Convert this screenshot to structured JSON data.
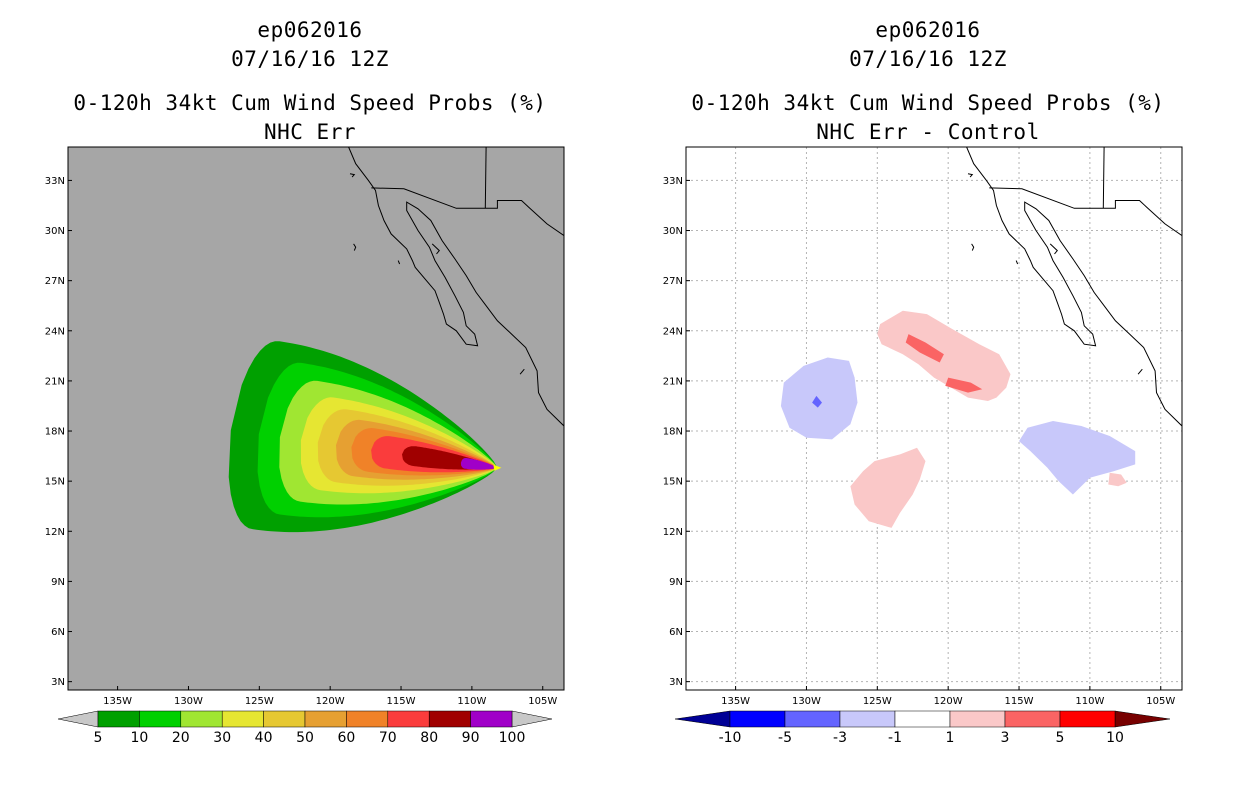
{
  "panels": [
    {
      "id": "left",
      "title_line1": "ep062016",
      "title_line2": "07/16/16 12Z",
      "title_line3": "0-120h 34kt Cum Wind Speed Probs (%)",
      "title_line4": "NHC Err"
    },
    {
      "id": "right",
      "title_line1": "ep062016",
      "title_line2": "07/16/16 12Z",
      "title_line3": "0-120h 34kt Cum Wind Speed Probs (%)",
      "title_line4": "NHC Err - Control"
    }
  ],
  "chart_data": [
    {
      "type": "heatmap",
      "title": "0-120h 34kt Cum Wind Speed Probs (%)",
      "subtitle": "NHC Err",
      "xlim_deg_west": [
        138.5,
        103.5
      ],
      "ylim_deg_north": [
        2.5,
        35
      ],
      "x_ticks": [
        "135W",
        "130W",
        "125W",
        "120W",
        "115W",
        "110W",
        "105W"
      ],
      "y_ticks": [
        "3N",
        "6N",
        "9N",
        "12N",
        "15N",
        "18N",
        "21N",
        "24N",
        "27N",
        "30N",
        "33N"
      ],
      "background_color": "#a6a6a6",
      "grid": false,
      "storm_center": [
        108.2,
        15.8
      ],
      "swath_heading_from_storm_deg": 188,
      "levels": [
        {
          "min": 5,
          "color": "#00a000",
          "extent_back": 19.0,
          "half_width": 6.7
        },
        {
          "min": 10,
          "color": "#00d000",
          "extent_back": 17.0,
          "half_width": 5.4
        },
        {
          "min": 20,
          "color": "#a0e632",
          "extent_back": 15.5,
          "half_width": 4.3
        },
        {
          "min": 30,
          "color": "#e6e632",
          "extent_back": 14.0,
          "half_width": 3.3
        },
        {
          "min": 40,
          "color": "#e6c832",
          "extent_back": 12.8,
          "half_width": 2.6
        },
        {
          "min": 50,
          "color": "#e6a032",
          "extent_back": 11.5,
          "half_width": 2.0
        },
        {
          "min": 60,
          "color": "#f08228",
          "extent_back": 10.4,
          "half_width": 1.55
        },
        {
          "min": 70,
          "color": "#fa3c3c",
          "extent_back": 9.0,
          "half_width": 1.15
        },
        {
          "min": 80,
          "color": "#a00000",
          "extent_back": 6.8,
          "half_width": 0.7
        },
        {
          "min": 90,
          "color": "#a000c8",
          "extent_back": 2.6,
          "half_width": 0.38
        }
      ],
      "colorbar_labels": [
        "5",
        "10",
        "20",
        "30",
        "40",
        "50",
        "60",
        "70",
        "80",
        "90",
        "100"
      ],
      "colorbar_colors": [
        "#00a000",
        "#00d000",
        "#a0e632",
        "#e6e632",
        "#e6c832",
        "#e6a032",
        "#f08228",
        "#fa3c3c",
        "#a00000",
        "#a000c8"
      ]
    },
    {
      "type": "heatmap",
      "title": "0-120h 34kt Cum Wind Speed Probs (%)",
      "subtitle": "NHC Err - Control",
      "xlim_deg_west": [
        138.5,
        103.5
      ],
      "ylim_deg_north": [
        2.5,
        35
      ],
      "x_ticks": [
        "135W",
        "130W",
        "125W",
        "120W",
        "115W",
        "110W",
        "105W"
      ],
      "y_ticks": [
        "3N",
        "6N",
        "9N",
        "12N",
        "15N",
        "18N",
        "21N",
        "24N",
        "27N",
        "30N",
        "33N"
      ],
      "background_color": "#ffffff",
      "grid": true,
      "regions": [
        {
          "level": "1 to 3",
          "color": "#fac8c8",
          "name": "positive-north",
          "coords": [
            [
              124.8,
              24.4
            ],
            [
              123.2,
              25.2
            ],
            [
              121.5,
              25.0
            ],
            [
              119.7,
              24.1
            ],
            [
              117.8,
              23.2
            ],
            [
              116.4,
              22.6
            ],
            [
              115.6,
              21.4
            ],
            [
              115.9,
              20.6
            ],
            [
              116.6,
              20.0
            ],
            [
              117.2,
              19.8
            ],
            [
              118.6,
              20.0
            ],
            [
              119.8,
              20.6
            ],
            [
              121.0,
              21.2
            ],
            [
              122.1,
              22.0
            ],
            [
              123.2,
              22.6
            ],
            [
              124.7,
              23.2
            ],
            [
              125.0,
              23.8
            ]
          ]
        },
        {
          "level": "1 to 3",
          "color": "#fac8c8",
          "name": "positive-south",
          "coords": [
            [
              125.2,
              16.2
            ],
            [
              123.4,
              16.6
            ],
            [
              122.2,
              17.0
            ],
            [
              121.6,
              16.2
            ],
            [
              122.0,
              15.1
            ],
            [
              122.5,
              14.2
            ],
            [
              123.4,
              13.1
            ],
            [
              124.0,
              12.2
            ],
            [
              125.6,
              12.6
            ],
            [
              126.6,
              13.6
            ],
            [
              126.9,
              14.7
            ],
            [
              126.0,
              15.6
            ]
          ]
        },
        {
          "level": "1 to 3",
          "color": "#fac8c8",
          "name": "positive-east",
          "coords": [
            [
              108.6,
              15.5
            ],
            [
              107.8,
              15.4
            ],
            [
              107.4,
              14.9
            ],
            [
              108.0,
              14.7
            ],
            [
              108.7,
              14.8
            ]
          ]
        },
        {
          "level": "-3 to -1",
          "color": "#c8c8fa",
          "name": "negative-west",
          "coords": [
            [
              130.2,
              21.9
            ],
            [
              128.5,
              22.4
            ],
            [
              127.0,
              22.2
            ],
            [
              126.6,
              21.2
            ],
            [
              126.4,
              19.7
            ],
            [
              126.9,
              18.4
            ],
            [
              128.2,
              17.5
            ],
            [
              130.0,
              17.6
            ],
            [
              131.2,
              18.2
            ],
            [
              131.8,
              19.5
            ],
            [
              131.6,
              20.9
            ]
          ]
        },
        {
          "level": "-3 to -1",
          "color": "#c8c8fa",
          "name": "negative-east",
          "coords": [
            [
              114.4,
              18.2
            ],
            [
              112.6,
              18.6
            ],
            [
              110.6,
              18.3
            ],
            [
              108.6,
              17.7
            ],
            [
              106.8,
              16.8
            ],
            [
              106.8,
              16.0
            ],
            [
              108.3,
              15.6
            ],
            [
              110.0,
              15.2
            ],
            [
              111.2,
              14.2
            ],
            [
              112.2,
              15.0
            ],
            [
              113.0,
              15.8
            ],
            [
              114.2,
              16.8
            ],
            [
              115.0,
              17.4
            ]
          ]
        },
        {
          "level": "3 to 5",
          "color": "#fa6464",
          "name": "strong-positive-1",
          "coords": [
            [
              122.8,
              23.8
            ],
            [
              121.6,
              23.3
            ],
            [
              120.3,
              22.6
            ],
            [
              120.6,
              22.1
            ],
            [
              122.0,
              22.7
            ],
            [
              123.0,
              23.3
            ]
          ]
        },
        {
          "level": "3 to 5",
          "color": "#fa6464",
          "name": "strong-positive-2",
          "coords": [
            [
              120.0,
              21.2
            ],
            [
              118.4,
              20.9
            ],
            [
              117.6,
              20.5
            ],
            [
              118.6,
              20.3
            ],
            [
              120.2,
              20.7
            ]
          ]
        },
        {
          "level": "-5 to -3",
          "color": "#6464ff",
          "name": "strong-negative",
          "coords": [
            [
              129.3,
              20.1
            ],
            [
              128.9,
              19.7
            ],
            [
              129.2,
              19.4
            ],
            [
              129.6,
              19.7
            ]
          ]
        }
      ],
      "colorbar_labels": [
        "-10",
        "-5",
        "-3",
        "-1",
        "1",
        "3",
        "5",
        "10"
      ],
      "colorbar_colors": [
        "#0000ff",
        "#6464ff",
        "#c8c8fa",
        "#ffffff",
        "#fac8c8",
        "#fa6464",
        "#ff0000"
      ],
      "colorbar_left_end_color": "#000096",
      "colorbar_right_end_color": "#780000"
    }
  ]
}
